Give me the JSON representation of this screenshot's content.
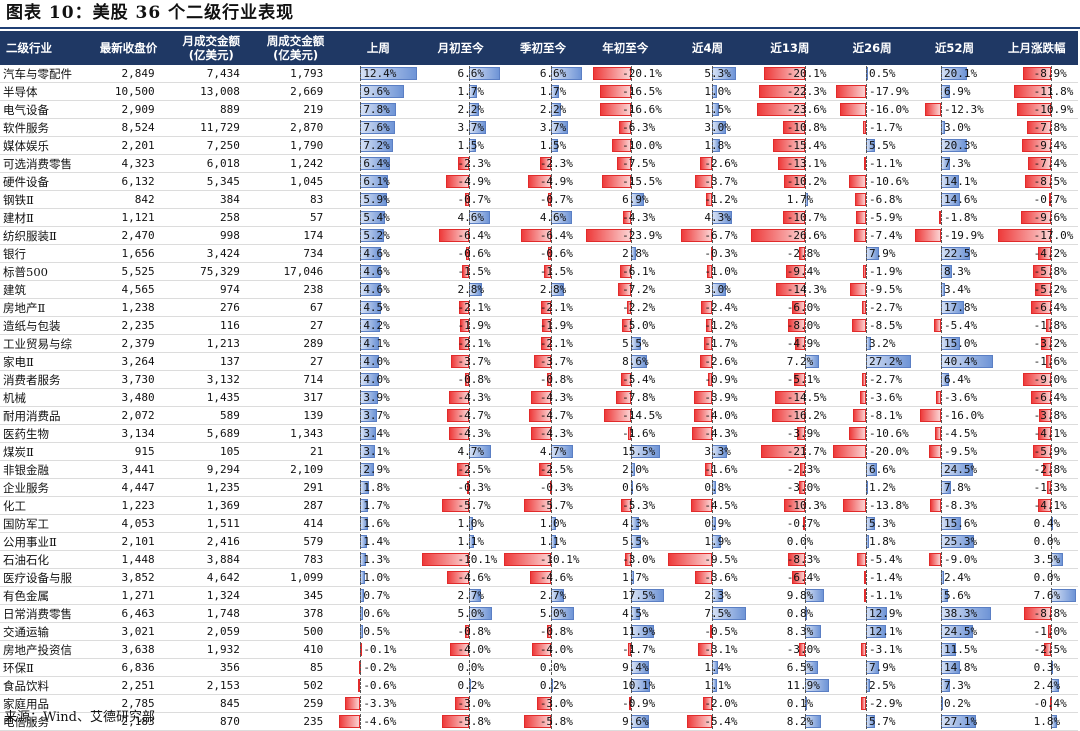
{
  "title": "图表 10：美股 36 个二级行业表现",
  "source": "来源：Wind、艾德研究部",
  "headers": [
    "二级行业",
    "最新收盘价",
    "月成交金额\n(亿美元)",
    "周成交金额\n(亿美元)",
    "上周",
    "月初至今",
    "季初至今",
    "年初至今",
    "近4周",
    "近13周",
    "近26周",
    "近52周",
    "上月涨跌幅"
  ],
  "rows": [
    [
      "汽车与零配件",
      "2,849",
      "7,434",
      "1,793",
      "12.4%",
      "6.6%",
      "6.6%",
      "-20.1%",
      "5.3%",
      "-20.1%",
      "0.5%",
      "20.1%",
      "-8.9%"
    ],
    [
      "半导体",
      "10,500",
      "13,008",
      "2,669",
      "9.6%",
      "1.7%",
      "1.7%",
      "-16.5%",
      "1.0%",
      "-22.3%",
      "-17.9%",
      "6.9%",
      "-11.8%"
    ],
    [
      "电气设备",
      "2,909",
      "889",
      "219",
      "7.8%",
      "2.2%",
      "2.2%",
      "-16.6%",
      "1.5%",
      "-23.6%",
      "-16.0%",
      "-12.3%",
      "-10.9%"
    ],
    [
      "软件服务",
      "8,524",
      "11,729",
      "2,870",
      "7.6%",
      "3.7%",
      "3.7%",
      "-6.3%",
      "3.0%",
      "-10.8%",
      "-1.7%",
      "3.0%",
      "-7.8%"
    ],
    [
      "媒体娱乐",
      "2,201",
      "7,250",
      "1,790",
      "7.2%",
      "1.5%",
      "1.5%",
      "-10.0%",
      "1.8%",
      "-15.4%",
      "5.5%",
      "20.3%",
      "-9.4%"
    ],
    [
      "可选消费零售",
      "4,323",
      "6,018",
      "1,242",
      "6.4%",
      "-2.3%",
      "-2.3%",
      "-7.5%",
      "-2.6%",
      "-13.1%",
      "-1.1%",
      "7.3%",
      "-7.4%"
    ],
    [
      "硬件设备",
      "6,132",
      "5,345",
      "1,045",
      "6.1%",
      "-4.9%",
      "-4.9%",
      "-15.5%",
      "-3.7%",
      "-10.2%",
      "-10.6%",
      "14.1%",
      "-8.5%"
    ],
    [
      "钢铁Ⅱ",
      "842",
      "384",
      "83",
      "5.9%",
      "-0.7%",
      "-0.7%",
      "6.9%",
      "-1.2%",
      "1.7%",
      "-6.8%",
      "14.6%",
      "-0.7%"
    ],
    [
      "建材Ⅱ",
      "1,121",
      "258",
      "57",
      "5.4%",
      "4.6%",
      "4.6%",
      "-4.3%",
      "4.3%",
      "-10.7%",
      "-5.9%",
      "-1.8%",
      "-9.6%"
    ],
    [
      "纺织服装Ⅱ",
      "2,470",
      "998",
      "174",
      "5.2%",
      "-6.4%",
      "-6.4%",
      "-23.9%",
      "-6.7%",
      "-26.6%",
      "-7.4%",
      "-19.9%",
      "-17.0%"
    ],
    [
      "银行",
      "1,656",
      "3,424",
      "734",
      "4.6%",
      "-0.6%",
      "-0.6%",
      "2.8%",
      "-0.3%",
      "-2.8%",
      "7.9%",
      "22.5%",
      "-4.2%"
    ],
    [
      "标普500",
      "5,525",
      "75,329",
      "17,046",
      "4.6%",
      "-1.5%",
      "-1.5%",
      "-6.1%",
      "-1.0%",
      "-9.4%",
      "-1.9%",
      "8.3%",
      "-5.8%"
    ],
    [
      "建筑",
      "4,565",
      "974",
      "238",
      "4.6%",
      "2.8%",
      "2.8%",
      "-7.2%",
      "3.0%",
      "-14.3%",
      "-9.5%",
      "3.4%",
      "-5.2%"
    ],
    [
      "房地产Ⅱ",
      "1,238",
      "276",
      "67",
      "4.5%",
      "-2.1%",
      "-2.1%",
      "-2.2%",
      "-2.4%",
      "-6.0%",
      "-2.7%",
      "17.8%",
      "-6.4%"
    ],
    [
      "造纸与包装",
      "2,235",
      "116",
      "27",
      "4.2%",
      "-1.9%",
      "-1.9%",
      "-5.0%",
      "-1.2%",
      "-8.0%",
      "-8.5%",
      "-5.4%",
      "-1.8%"
    ],
    [
      "工业贸易与综",
      "2,379",
      "1,213",
      "289",
      "4.1%",
      "-2.1%",
      "-2.1%",
      "5.5%",
      "-1.7%",
      "-4.9%",
      "3.2%",
      "15.0%",
      "-3.2%"
    ],
    [
      "家电Ⅱ",
      "3,264",
      "137",
      "27",
      "4.0%",
      "-3.7%",
      "-3.7%",
      "8.6%",
      "-2.6%",
      "7.2%",
      "27.2%",
      "40.4%",
      "-1.6%"
    ],
    [
      "消费者服务",
      "3,730",
      "3,132",
      "714",
      "4.0%",
      "-0.8%",
      "-0.8%",
      "-5.4%",
      "-0.9%",
      "-5.1%",
      "-2.7%",
      "6.4%",
      "-9.0%"
    ],
    [
      "机械",
      "3,480",
      "1,435",
      "317",
      "3.9%",
      "-4.3%",
      "-4.3%",
      "-7.8%",
      "-3.9%",
      "-14.5%",
      "-3.6%",
      "-3.6%",
      "-6.4%"
    ],
    [
      "耐用消费品",
      "2,072",
      "589",
      "139",
      "3.7%",
      "-4.7%",
      "-4.7%",
      "-14.5%",
      "-4.0%",
      "-16.2%",
      "-8.1%",
      "-16.0%",
      "-3.8%"
    ],
    [
      "医药生物",
      "3,134",
      "5,689",
      "1,343",
      "3.4%",
      "-4.3%",
      "-4.3%",
      "-1.6%",
      "-4.3%",
      "-3.9%",
      "-10.6%",
      "-4.5%",
      "-4.1%"
    ],
    [
      "煤炭Ⅱ",
      "915",
      "105",
      "21",
      "3.1%",
      "4.7%",
      "4.7%",
      "15.5%",
      "3.3%",
      "-21.7%",
      "-20.0%",
      "-9.5%",
      "-5.9%"
    ],
    [
      "非银金融",
      "3,441",
      "9,294",
      "2,109",
      "2.9%",
      "-2.5%",
      "-2.5%",
      "2.0%",
      "-1.6%",
      "-2.3%",
      "6.6%",
      "24.5%",
      "-2.8%"
    ],
    [
      "企业服务",
      "4,447",
      "1,235",
      "291",
      "1.8%",
      "-0.3%",
      "-0.3%",
      "0.6%",
      "0.8%",
      "-3.0%",
      "1.2%",
      "7.8%",
      "-1.3%"
    ],
    [
      "化工",
      "1,223",
      "1,369",
      "287",
      "1.7%",
      "-5.7%",
      "-5.7%",
      "-5.3%",
      "-4.5%",
      "-10.3%",
      "-13.8%",
      "-8.3%",
      "-4.1%"
    ],
    [
      "国防军工",
      "4,053",
      "1,511",
      "414",
      "1.6%",
      "1.0%",
      "1.0%",
      "4.3%",
      "0.9%",
      "-0.7%",
      "5.3%",
      "15.6%",
      "0.4%"
    ],
    [
      "公用事业Ⅱ",
      "2,101",
      "2,416",
      "579",
      "1.4%",
      "1.1%",
      "1.1%",
      "5.5%",
      "1.9%",
      "0.0%",
      "1.8%",
      "25.3%",
      "0.0%"
    ],
    [
      "石油石化",
      "1,448",
      "3,884",
      "783",
      "1.3%",
      "-10.1%",
      "-10.1%",
      "-3.0%",
      "-9.5%",
      "-8.3%",
      "-5.4%",
      "-9.0%",
      "3.5%"
    ],
    [
      "医疗设备与服",
      "3,852",
      "4,642",
      "1,099",
      "1.0%",
      "-4.6%",
      "-4.6%",
      "1.7%",
      "-3.6%",
      "-6.4%",
      "-1.4%",
      "2.4%",
      "0.0%"
    ],
    [
      "有色金属",
      "1,271",
      "1,324",
      "345",
      "0.7%",
      "2.7%",
      "2.7%",
      "17.5%",
      "2.3%",
      "9.8%",
      "-1.1%",
      "5.6%",
      "7.6%"
    ],
    [
      "日常消费零售",
      "6,463",
      "1,748",
      "378",
      "0.6%",
      "5.0%",
      "5.0%",
      "4.5%",
      "7.5%",
      "0.8%",
      "12.9%",
      "38.3%",
      "-8.8%"
    ],
    [
      "交通运输",
      "3,021",
      "2,059",
      "500",
      "0.5%",
      "-0.8%",
      "-0.8%",
      "11.9%",
      "-0.5%",
      "8.3%",
      "12.1%",
      "24.5%",
      "-1.0%"
    ],
    [
      "房地产投资信",
      "3,638",
      "1,932",
      "410",
      "-0.1%",
      "-4.0%",
      "-4.0%",
      "-1.7%",
      "-3.1%",
      "-3.0%",
      "-3.1%",
      "11.5%",
      "-2.5%"
    ],
    [
      "环保Ⅱ",
      "6,836",
      "356",
      "85",
      "-0.2%",
      "0.0%",
      "0.0%",
      "9.4%",
      "1.4%",
      "6.5%",
      "7.9%",
      "14.8%",
      "0.3%"
    ],
    [
      "食品饮料",
      "2,251",
      "2,153",
      "502",
      "-0.6%",
      "0.2%",
      "0.2%",
      "10.1%",
      "1.1%",
      "11.9%",
      "2.5%",
      "7.3%",
      "2.4%"
    ],
    [
      "家庭用品",
      "2,785",
      "845",
      "259",
      "-3.3%",
      "-3.0%",
      "-3.0%",
      "-0.9%",
      "-2.0%",
      "0.1%",
      "-2.9%",
      "0.2%",
      "-0.4%"
    ],
    [
      "电信服务",
      "2,183",
      "870",
      "235",
      "-4.6%",
      "-5.8%",
      "-5.8%",
      "9.6%",
      "-5.4%",
      "8.2%",
      "5.7%",
      "27.1%",
      "1.8%"
    ]
  ],
  "colors": {
    "header_bg": "#1f3864",
    "bar_positive": "#6e94d6",
    "bar_negative": "#ee3b3b"
  },
  "bar_columns": [
    4,
    5,
    6,
    7,
    8,
    9,
    10,
    11,
    12
  ]
}
